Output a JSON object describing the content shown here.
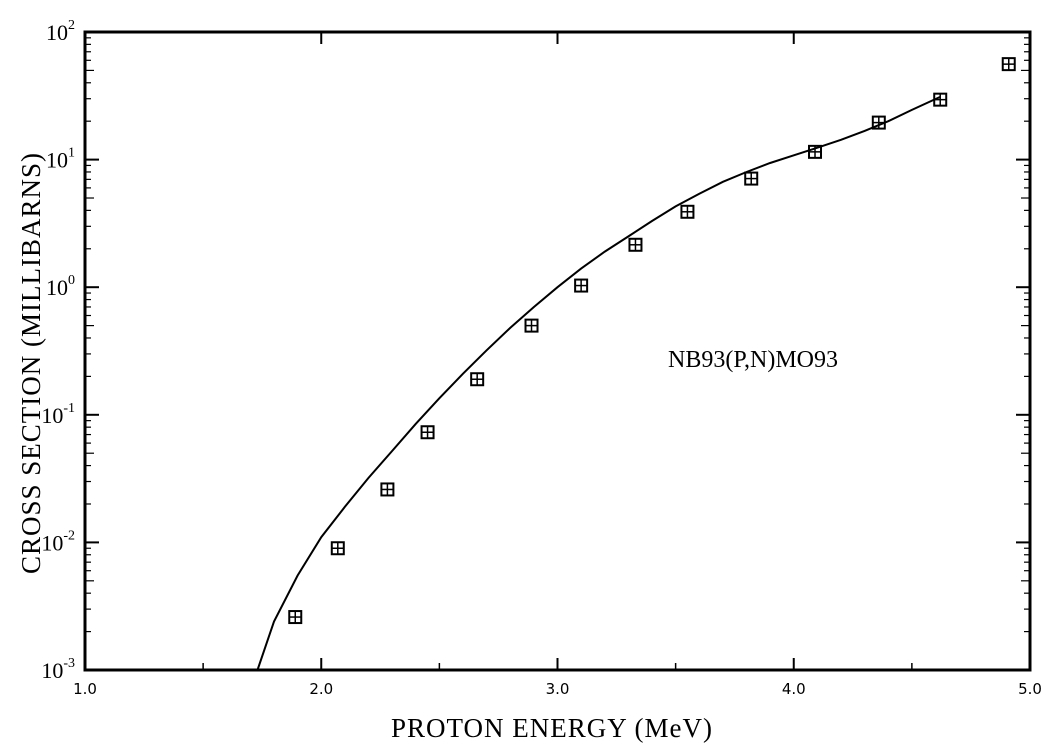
{
  "chart_data": {
    "type": "scatter",
    "title": "",
    "xlabel": "PROTON ENERGY (MeV)",
    "ylabel": "CROSS SECTION (MILLIBARNS)",
    "xlim": [
      1.0,
      5.0
    ],
    "ylim": [
      0.001,
      100
    ],
    "yscale": "log",
    "grid": false,
    "x_ticks": [
      1.0,
      2.0,
      3.0,
      4.0,
      5.0
    ],
    "x_tick_labels": [
      "1.0",
      "2.0",
      "3.0",
      "4.0",
      "5.0"
    ],
    "y_ticks": [
      0.001,
      0.01,
      0.1,
      1,
      10,
      100
    ],
    "y_tick_labels": [
      {
        "base": "10",
        "exp": "-3"
      },
      {
        "base": "10",
        "exp": "-2"
      },
      {
        "base": "10",
        "exp": "-1"
      },
      {
        "base": "10",
        "exp": "0"
      },
      {
        "base": "10",
        "exp": "1"
      },
      {
        "base": "10",
        "exp": "2"
      }
    ],
    "annotation": "NB93(P,N)MO93",
    "series": [
      {
        "marker": "square",
        "points": [
          {
            "x": 1.89,
            "y": 0.0026
          },
          {
            "x": 2.07,
            "y": 0.009
          },
          {
            "x": 2.28,
            "y": 0.026
          },
          {
            "x": 2.45,
            "y": 0.073
          },
          {
            "x": 2.66,
            "y": 0.19
          },
          {
            "x": 2.89,
            "y": 0.5
          },
          {
            "x": 3.1,
            "y": 1.03
          },
          {
            "x": 3.33,
            "y": 2.15
          },
          {
            "x": 3.55,
            "y": 3.9
          },
          {
            "x": 3.82,
            "y": 7.1
          },
          {
            "x": 4.09,
            "y": 11.5
          },
          {
            "x": 4.36,
            "y": 19.5
          },
          {
            "x": 4.62,
            "y": 29.5
          },
          {
            "x": 4.91,
            "y": 56
          }
        ]
      },
      {
        "marker": "none",
        "line": "solid",
        "points": [
          {
            "x": 1.73,
            "y": 0.001
          },
          {
            "x": 1.8,
            "y": 0.0024
          },
          {
            "x": 1.9,
            "y": 0.0055
          },
          {
            "x": 2.0,
            "y": 0.011
          },
          {
            "x": 2.1,
            "y": 0.019
          },
          {
            "x": 2.2,
            "y": 0.032
          },
          {
            "x": 2.3,
            "y": 0.052
          },
          {
            "x": 2.4,
            "y": 0.085
          },
          {
            "x": 2.5,
            "y": 0.135
          },
          {
            "x": 2.6,
            "y": 0.21
          },
          {
            "x": 2.7,
            "y": 0.32
          },
          {
            "x": 2.8,
            "y": 0.48
          },
          {
            "x": 2.9,
            "y": 0.7
          },
          {
            "x": 3.0,
            "y": 1.0
          },
          {
            "x": 3.1,
            "y": 1.4
          },
          {
            "x": 3.2,
            "y": 1.9
          },
          {
            "x": 3.3,
            "y": 2.5
          },
          {
            "x": 3.4,
            "y": 3.3
          },
          {
            "x": 3.5,
            "y": 4.3
          },
          {
            "x": 3.6,
            "y": 5.4
          },
          {
            "x": 3.7,
            "y": 6.7
          },
          {
            "x": 3.8,
            "y": 8.0
          },
          {
            "x": 3.9,
            "y": 9.4
          },
          {
            "x": 4.0,
            "y": 10.8
          },
          {
            "x": 4.1,
            "y": 12.4
          },
          {
            "x": 4.2,
            "y": 14.3
          },
          {
            "x": 4.3,
            "y": 16.8
          },
          {
            "x": 4.4,
            "y": 20.0
          },
          {
            "x": 4.5,
            "y": 24.5
          },
          {
            "x": 4.62,
            "y": 31.0
          }
        ]
      }
    ]
  }
}
